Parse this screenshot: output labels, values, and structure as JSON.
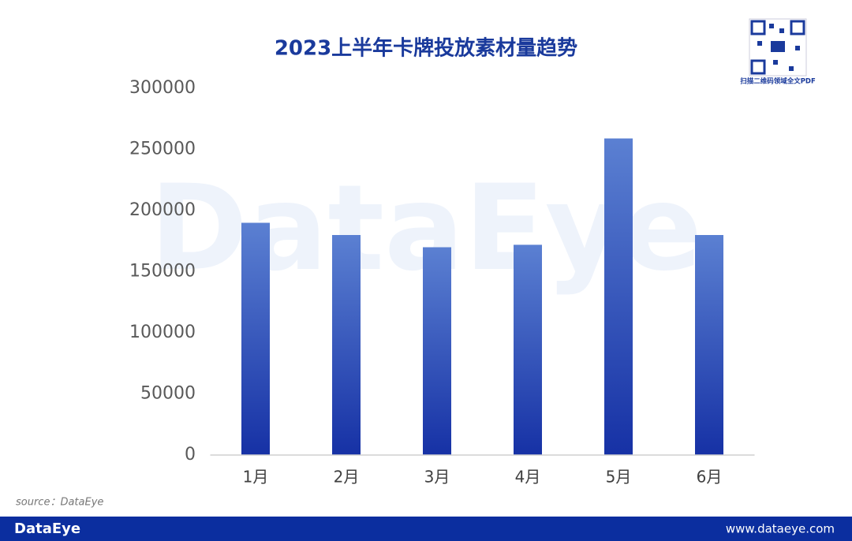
{
  "chart_data": {
    "type": "bar",
    "title": "2023上半年卡牌投放素材量趋势",
    "categories": [
      "1月",
      "2月",
      "3月",
      "4月",
      "5月",
      "6月"
    ],
    "values": [
      190000,
      180000,
      170000,
      172000,
      259000,
      180000
    ],
    "gradient": [
      "#5b80d2",
      "#1631a5"
    ],
    "ylim": [
      0,
      300000
    ],
    "yticks": [
      0,
      50000,
      100000,
      150000,
      200000,
      250000,
      300000
    ],
    "grid": false,
    "watermark": "DataEye",
    "qr_caption": "扫描二维码领域全文PDF",
    "source": "source：DataEye",
    "footer_brand": "DataEye",
    "footer_url": "www.dataeye.com"
  }
}
